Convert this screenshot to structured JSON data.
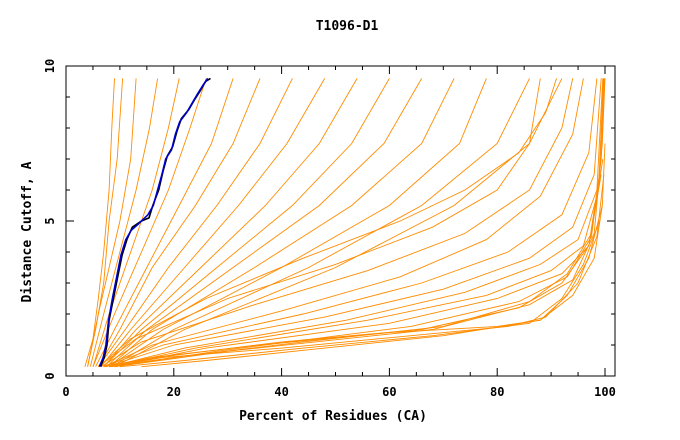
{
  "chart_data": {
    "type": "line",
    "title": "T1096-D1",
    "xlabel": "Percent of Residues (CA)",
    "ylabel": "Distance Cutoff, A",
    "xlim": [
      0,
      100
    ],
    "ylim": [
      0,
      10
    ],
    "x_ticks": [
      0,
      20,
      40,
      60,
      80,
      100
    ],
    "y_ticks": [
      0,
      5,
      10
    ],
    "grid": false,
    "colors": {
      "models": "#ff8c00",
      "highlight_primary": "#0000cc",
      "highlight_secondary": "#000000"
    },
    "series": [
      {
        "values": [
          [
            3.5,
            0.3
          ],
          [
            5,
            1.2
          ],
          [
            6,
            2.5
          ],
          [
            7,
            4
          ],
          [
            8,
            6
          ],
          [
            8.5,
            8
          ],
          [
            9,
            9.6
          ]
        ]
      },
      {
        "values": [
          [
            4,
            0.3
          ],
          [
            5.5,
            1.5
          ],
          [
            7,
            3
          ],
          [
            8,
            5
          ],
          [
            9.5,
            7
          ],
          [
            10.5,
            9.6
          ]
        ]
      },
      {
        "values": [
          [
            4,
            0.3
          ],
          [
            6,
            2
          ],
          [
            8,
            3.5
          ],
          [
            10,
            5
          ],
          [
            12,
            7
          ],
          [
            13,
            9.6
          ]
        ]
      },
      {
        "values": [
          [
            4.5,
            0.3
          ],
          [
            7,
            2
          ],
          [
            10,
            4
          ],
          [
            13,
            6
          ],
          [
            15.5,
            8
          ],
          [
            17,
            9.6
          ]
        ]
      },
      {
        "values": [
          [
            5,
            0.3
          ],
          [
            8,
            2
          ],
          [
            12,
            4
          ],
          [
            16,
            6
          ],
          [
            19,
            8
          ],
          [
            21,
            9.6
          ]
        ]
      },
      {
        "values": [
          [
            5,
            0.3
          ],
          [
            9,
            2
          ],
          [
            14,
            4
          ],
          [
            19,
            6
          ],
          [
            23,
            8
          ],
          [
            26,
            9.6
          ]
        ]
      },
      {
        "values": [
          [
            5.5,
            0.3
          ],
          [
            9,
            1.5
          ],
          [
            15,
            3.5
          ],
          [
            21,
            5.5
          ],
          [
            27,
            7.5
          ],
          [
            31,
            9.6
          ]
        ]
      },
      {
        "values": [
          [
            6,
            0.3
          ],
          [
            10,
            1.5
          ],
          [
            16,
            3.5
          ],
          [
            24,
            5.5
          ],
          [
            31,
            7.5
          ],
          [
            36,
            9.6
          ]
        ]
      },
      {
        "values": [
          [
            6,
            0.3
          ],
          [
            11,
            1.5
          ],
          [
            19,
            3.5
          ],
          [
            28,
            5.5
          ],
          [
            36,
            7.5
          ],
          [
            42,
            9.6
          ]
        ]
      },
      {
        "values": [
          [
            6.5,
            0.3
          ],
          [
            12,
            1.5
          ],
          [
            22,
            3.5
          ],
          [
            32,
            5.5
          ],
          [
            41,
            7.5
          ],
          [
            48,
            9.6
          ]
        ]
      },
      {
        "values": [
          [
            7,
            0.3
          ],
          [
            13,
            1.5
          ],
          [
            25,
            3.5
          ],
          [
            37,
            5.5
          ],
          [
            47,
            7.5
          ],
          [
            54,
            9.6
          ]
        ]
      },
      {
        "values": [
          [
            7,
            0.3
          ],
          [
            14,
            1.5
          ],
          [
            28,
            3.5
          ],
          [
            42,
            5.5
          ],
          [
            53,
            7.5
          ],
          [
            60,
            9.6
          ]
        ]
      },
      {
        "values": [
          [
            7.5,
            0.3
          ],
          [
            15,
            1.5
          ],
          [
            31,
            3.5
          ],
          [
            47,
            5.5
          ],
          [
            59,
            7.5
          ],
          [
            66,
            9.6
          ]
        ]
      },
      {
        "values": [
          [
            8,
            0.3
          ],
          [
            16,
            1.5
          ],
          [
            35,
            3.5
          ],
          [
            53,
            5.5
          ],
          [
            66,
            7.5
          ],
          [
            72,
            9.6
          ]
        ]
      },
      {
        "values": [
          [
            8,
            0.3
          ],
          [
            18,
            1.5
          ],
          [
            40,
            3.5
          ],
          [
            60,
            5.5
          ],
          [
            73,
            7.5
          ],
          [
            78,
            9.6
          ]
        ]
      },
      {
        "values": [
          [
            8.5,
            0.3
          ],
          [
            20,
            1.5
          ],
          [
            45,
            3.5
          ],
          [
            66,
            5.5
          ],
          [
            80,
            7.5
          ],
          [
            86,
            9.6
          ]
        ]
      },
      {
        "values": [
          [
            9,
            0.3
          ],
          [
            22,
            1.5
          ],
          [
            50,
            3.5
          ],
          [
            72,
            5.5
          ],
          [
            86,
            7.5
          ],
          [
            92,
            9.6
          ]
        ]
      },
      {
        "values": [
          [
            6,
            0.3
          ],
          [
            12,
            1.2
          ],
          [
            26,
            2.5
          ],
          [
            44,
            3.8
          ],
          [
            62,
            5
          ],
          [
            74,
            6
          ],
          [
            84,
            7.2
          ],
          [
            89,
            8.5
          ],
          [
            91,
            9.6
          ]
        ]
      },
      {
        "values": [
          [
            6,
            0.3
          ],
          [
            13,
            1.2
          ],
          [
            30,
            2.5
          ],
          [
            50,
            3.6
          ],
          [
            68,
            4.8
          ],
          [
            80,
            6
          ],
          [
            86,
            7.5
          ],
          [
            88,
            9.6
          ]
        ]
      },
      {
        "values": [
          [
            6.5,
            0.3
          ],
          [
            14,
            1.1
          ],
          [
            35,
            2.3
          ],
          [
            56,
            3.4
          ],
          [
            74,
            4.6
          ],
          [
            86,
            6
          ],
          [
            92,
            8
          ],
          [
            94,
            9.6
          ]
        ]
      },
      {
        "values": [
          [
            7,
            0.3
          ],
          [
            16,
            1
          ],
          [
            40,
            2.1
          ],
          [
            62,
            3.2
          ],
          [
            78,
            4.4
          ],
          [
            88,
            5.8
          ],
          [
            94,
            7.8
          ],
          [
            96,
            9.6
          ]
        ]
      },
      {
        "values": [
          [
            7,
            0.3
          ],
          [
            18,
            1
          ],
          [
            44,
            2
          ],
          [
            66,
            3
          ],
          [
            82,
            4
          ],
          [
            92,
            5.2
          ],
          [
            97,
            7.2
          ],
          [
            98.5,
            9.6
          ]
        ]
      },
      {
        "values": [
          [
            7.5,
            0.3
          ],
          [
            20,
            1
          ],
          [
            48,
            1.9
          ],
          [
            70,
            2.8
          ],
          [
            86,
            3.8
          ],
          [
            94,
            4.8
          ],
          [
            98,
            6.5
          ],
          [
            99.3,
            9.6
          ]
        ]
      },
      {
        "values": [
          [
            8,
            0.3
          ],
          [
            22,
            0.9
          ],
          [
            52,
            1.8
          ],
          [
            74,
            2.7
          ],
          [
            88,
            3.6
          ],
          [
            95,
            4.4
          ],
          [
            98.5,
            6
          ],
          [
            99.6,
            9.6
          ]
        ]
      },
      {
        "values": [
          [
            8,
            0.3
          ],
          [
            24,
            0.9
          ],
          [
            56,
            1.8
          ],
          [
            78,
            2.6
          ],
          [
            90,
            3.4
          ],
          [
            96,
            4.2
          ],
          [
            98.8,
            6
          ],
          [
            99.7,
            9.6
          ]
        ]
      },
      {
        "values": [
          [
            8.5,
            0.3
          ],
          [
            26,
            0.9
          ],
          [
            60,
            1.7
          ],
          [
            80,
            2.5
          ],
          [
            92,
            3.3
          ],
          [
            97,
            4.2
          ],
          [
            99,
            6.5
          ],
          [
            99.8,
            9.6
          ]
        ]
      },
      {
        "values": [
          [
            9,
            0.3
          ],
          [
            28,
            0.8
          ],
          [
            64,
            1.6
          ],
          [
            84,
            2.4
          ],
          [
            93,
            3.2
          ],
          [
            97.5,
            4.5
          ],
          [
            99.3,
            7
          ],
          [
            99.9,
            9.6
          ]
        ]
      },
      {
        "values": [
          [
            9,
            0.3
          ],
          [
            30,
            0.8
          ],
          [
            68,
            1.5
          ],
          [
            86,
            2.3
          ],
          [
            94,
            3.1
          ],
          [
            98,
            4.6
          ],
          [
            99.5,
            7.5
          ],
          [
            100,
            9.6
          ]
        ]
      },
      {
        "values": [
          [
            7,
            0.3
          ],
          [
            16,
            0.6
          ],
          [
            36,
            1
          ],
          [
            60,
            1.4
          ],
          [
            80,
            1.6
          ],
          [
            88,
            1.8
          ],
          [
            94,
            2.6
          ],
          [
            98,
            3.8
          ],
          [
            99.5,
            5.5
          ],
          [
            100,
            7.5
          ]
        ]
      },
      {
        "values": [
          [
            8,
            0.3
          ],
          [
            18,
            0.6
          ],
          [
            40,
            0.9
          ],
          [
            64,
            1.3
          ],
          [
            82,
            1.6
          ],
          [
            89,
            1.9
          ],
          [
            95,
            3
          ],
          [
            98.5,
            4.5
          ],
          [
            99.8,
            6.5
          ]
        ]
      },
      {
        "values": [
          [
            10,
            0.3
          ],
          [
            22,
            0.5
          ],
          [
            44,
            0.9
          ],
          [
            68,
            1.3
          ],
          [
            86,
            1.7
          ],
          [
            92,
            2.5
          ],
          [
            96,
            3.6
          ],
          [
            99,
            5
          ]
        ]
      },
      {
        "values": [
          [
            14,
            0.3
          ],
          [
            26,
            0.5
          ],
          [
            48,
            0.9
          ],
          [
            70,
            1.3
          ],
          [
            88,
            1.8
          ],
          [
            93,
            2.6
          ],
          [
            97,
            3.8
          ],
          [
            99.5,
            5.5
          ]
        ]
      },
      {
        "values": [
          [
            7,
            0.3
          ],
          [
            17,
            0.6
          ],
          [
            40,
            1.1
          ],
          [
            66,
            1.5
          ],
          [
            84,
            2.2
          ],
          [
            92,
            3
          ],
          [
            97,
            4.2
          ],
          [
            99.3,
            6.5
          ]
        ]
      },
      {
        "values": [
          [
            8,
            0.3
          ],
          [
            20,
            0.6
          ],
          [
            44,
            1.1
          ],
          [
            70,
            1.6
          ],
          [
            86,
            2.4
          ],
          [
            93,
            3.3
          ],
          [
            97.5,
            4.6
          ],
          [
            99.6,
            7
          ]
        ]
      }
    ],
    "highlights": [
      {
        "values": [
          [
            6.4,
            0.3
          ],
          [
            7.1,
            0.6
          ],
          [
            7.6,
            1
          ],
          [
            8,
            1.8
          ],
          [
            8.8,
            2.5
          ],
          [
            9.6,
            3.2
          ],
          [
            10.4,
            3.9
          ],
          [
            11.3,
            4.4
          ],
          [
            12.3,
            4.8
          ],
          [
            14,
            5
          ],
          [
            15.4,
            5.1
          ],
          [
            16.1,
            5.5
          ],
          [
            17.2,
            6
          ],
          [
            18,
            6.6
          ],
          [
            18.8,
            7.1
          ],
          [
            19.8,
            7.4
          ],
          [
            20.6,
            7.9
          ],
          [
            21.4,
            8.3
          ],
          [
            22.8,
            8.6
          ],
          [
            23.8,
            8.9
          ],
          [
            24.9,
            9.2
          ],
          [
            25.9,
            9.5
          ],
          [
            26.8,
            9.6
          ]
        ]
      },
      {
        "values": [
          [
            6.2,
            0.3
          ],
          [
            6.9,
            0.6
          ],
          [
            7.4,
            1
          ],
          [
            7.9,
            1.8
          ],
          [
            8.6,
            2.5
          ],
          [
            9.4,
            3.2
          ],
          [
            10.2,
            3.9
          ],
          [
            11.1,
            4.4
          ],
          [
            12.1,
            4.7
          ],
          [
            13.4,
            4.9
          ],
          [
            15.2,
            5.2
          ],
          [
            16.2,
            5.5
          ],
          [
            17,
            6
          ],
          [
            17.8,
            6.5
          ],
          [
            18.5,
            7
          ],
          [
            19.6,
            7.3
          ],
          [
            20.3,
            7.8
          ],
          [
            21.1,
            8.2
          ],
          [
            22.4,
            8.5
          ],
          [
            23.4,
            8.8
          ],
          [
            24.4,
            9.1
          ],
          [
            25.5,
            9.4
          ],
          [
            26.3,
            9.6
          ]
        ]
      }
    ]
  }
}
